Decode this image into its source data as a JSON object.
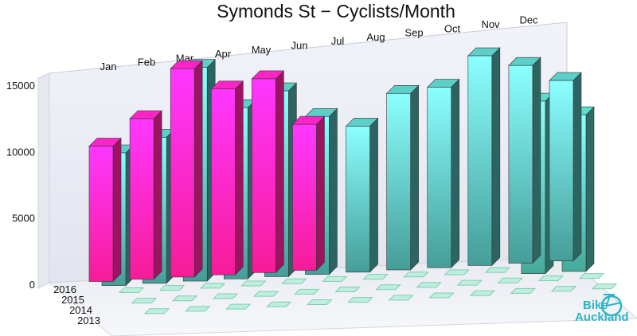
{
  "chart_data": {
    "type": "bar",
    "title": "Symonds St − Cyclists/Month",
    "categories": [
      "Jan",
      "Feb",
      "Mar",
      "Apr",
      "May",
      "Jun",
      "Jul",
      "Aug",
      "Sep",
      "Oct",
      "Nov",
      "Dec"
    ],
    "series_labels": [
      "2016",
      "2015",
      "2014",
      "2013"
    ],
    "series": [
      {
        "name": "2016",
        "color": "#e0198a",
        "values": [
          10200,
          12100,
          15700,
          14000,
          14600,
          11000,
          null,
          null,
          null,
          null,
          null,
          null
        ]
      },
      {
        "name": "2015",
        "color": "#3f8f8a",
        "values": [
          10000,
          11000,
          16100,
          12900,
          14000,
          11900,
          11000,
          13300,
          13600,
          15800,
          14900,
          13600
        ]
      },
      {
        "name": "2014",
        "color": "#3f9a8c",
        "values": [
          null,
          null,
          null,
          null,
          null,
          null,
          null,
          null,
          null,
          null,
          13000,
          11800
        ]
      }
    ],
    "y_ticks": [
      0,
      5000,
      10000,
      15000
    ],
    "y_tick_labels": [
      "0",
      "5000",
      "10000",
      "15000"
    ],
    "ylim": [
      0,
      17000
    ],
    "grid": false
  },
  "logo": {
    "line1": "Bike",
    "line2": "Auckland",
    "color": "#2eb4c8"
  }
}
